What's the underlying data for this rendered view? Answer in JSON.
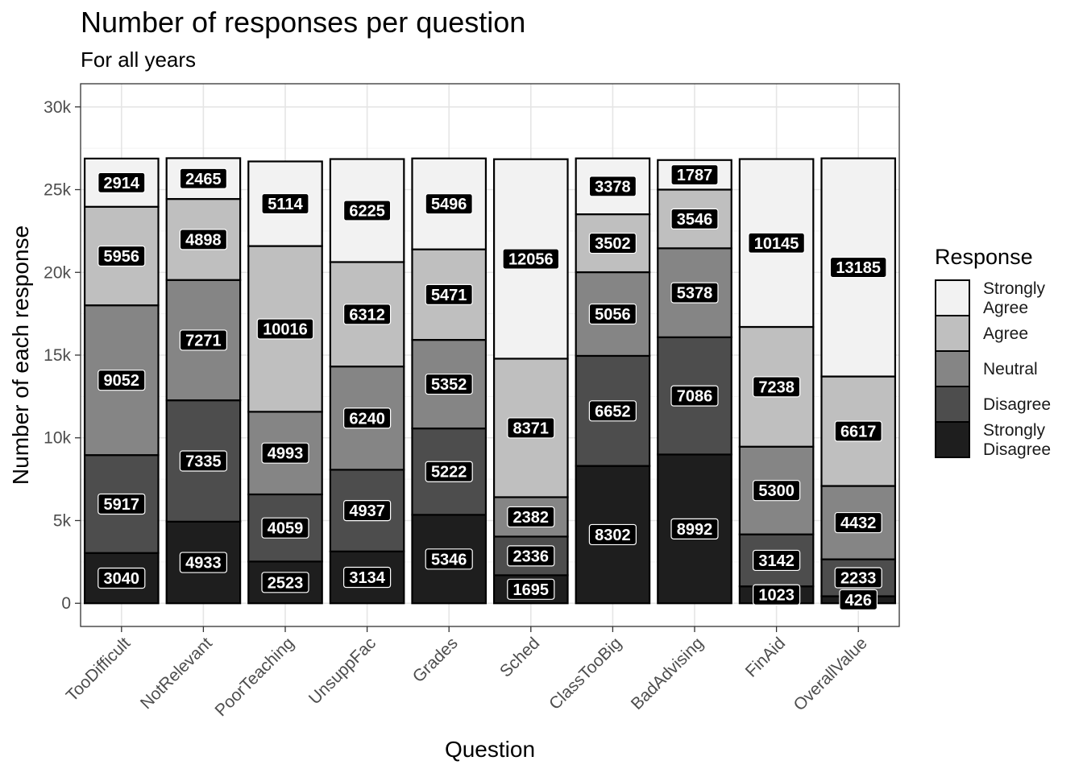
{
  "chart_data": {
    "type": "bar",
    "stacked": true,
    "title": "Number of responses per question",
    "subtitle": "For all years",
    "xlabel": "Question",
    "ylabel": "Number of each response",
    "ylim": [
      -1400,
      31400
    ],
    "y_ticks": [
      0,
      5000,
      10000,
      15000,
      20000,
      25000,
      30000
    ],
    "y_tick_labels": [
      "0",
      "5k",
      "10k",
      "15k",
      "20k",
      "25k",
      "30k"
    ],
    "grid": true,
    "legend_position": "right",
    "categories": [
      "TooDifficult",
      "NotRelevant",
      "PoorTeaching",
      "UnsuppFac",
      "Grades",
      "Sched",
      "ClassTooBig",
      "BadAdvising",
      "FinAid",
      "OverallValue"
    ],
    "legend": {
      "title": "Response",
      "items": [
        {
          "label_lines": [
            "Strongly",
            "Agree"
          ],
          "color": "#f2f2f2"
        },
        {
          "label_lines": [
            "Agree"
          ],
          "color": "#bfbfbf"
        },
        {
          "label_lines": [
            "Neutral"
          ],
          "color": "#858585"
        },
        {
          "label_lines": [
            "Disagree"
          ],
          "color": "#4d4d4d"
        },
        {
          "label_lines": [
            "Strongly",
            "Disagree"
          ],
          "color": "#1e1e1e"
        }
      ]
    },
    "series": [
      {
        "name": "Strongly Disagree",
        "color": "#1e1e1e",
        "values": [
          3040,
          4933,
          2523,
          3134,
          5346,
          1695,
          8302,
          8992,
          1023,
          426
        ]
      },
      {
        "name": "Disagree",
        "color": "#4d4d4d",
        "values": [
          5917,
          7335,
          4059,
          4937,
          5222,
          2336,
          6652,
          7086,
          3142,
          2233
        ]
      },
      {
        "name": "Neutral",
        "color": "#858585",
        "values": [
          9052,
          7271,
          4993,
          6240,
          5352,
          2382,
          5056,
          5378,
          5300,
          4432
        ]
      },
      {
        "name": "Agree",
        "color": "#bfbfbf",
        "values": [
          5956,
          4898,
          10016,
          6312,
          5471,
          8371,
          3502,
          3546,
          7238,
          6617
        ]
      },
      {
        "name": "Strongly Agree",
        "color": "#f2f2f2",
        "values": [
          2914,
          2465,
          5114,
          6225,
          5496,
          12056,
          3378,
          1787,
          10145,
          13185
        ]
      }
    ]
  }
}
